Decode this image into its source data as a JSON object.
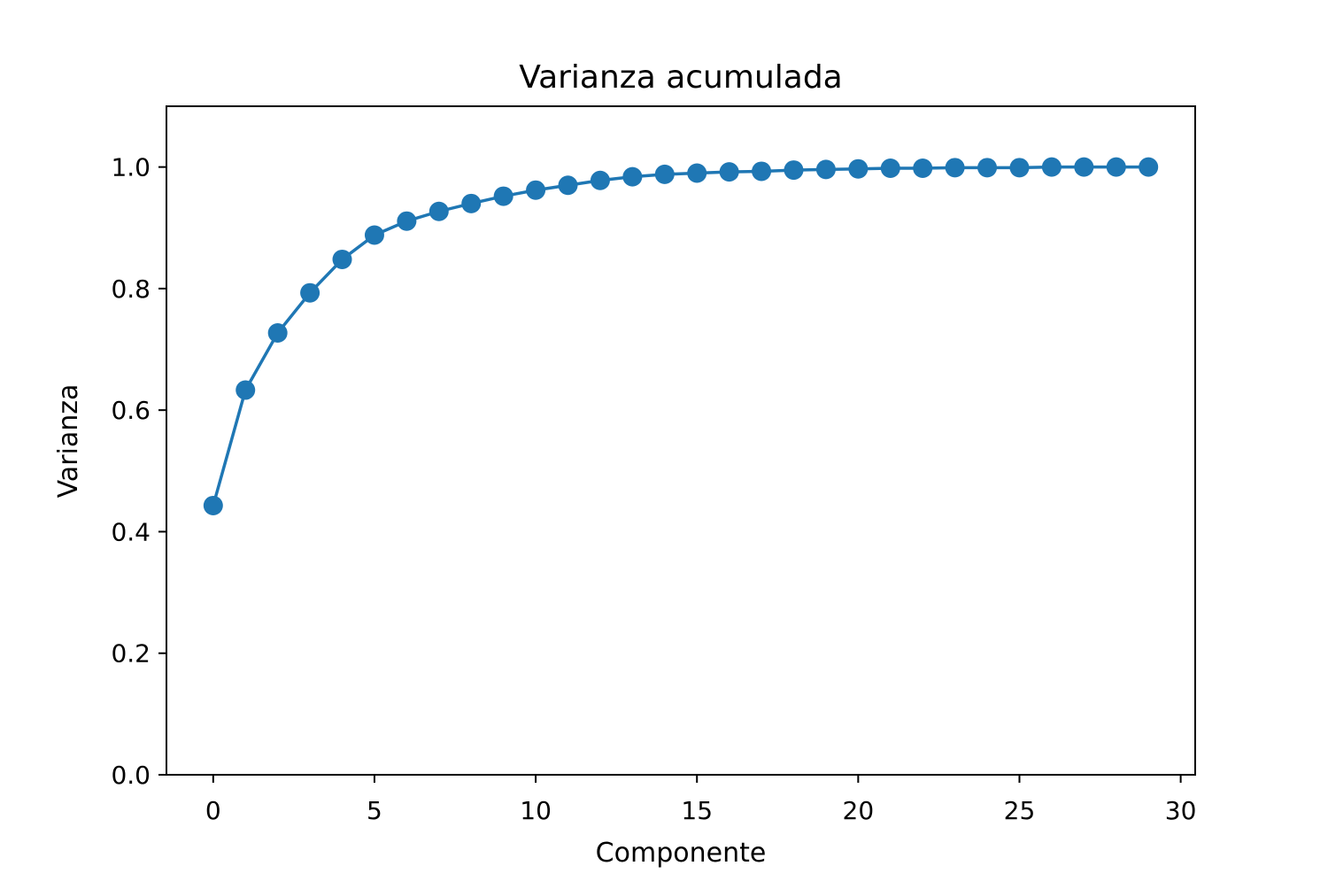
{
  "chart_data": {
    "type": "line",
    "title": "Varianza acumulada",
    "xlabel": "Componente",
    "ylabel": "Varianza",
    "xlim": [
      -1.45,
      30.45
    ],
    "ylim": [
      0.0,
      1.1
    ],
    "x_ticks": [
      0,
      5,
      10,
      15,
      20,
      25,
      30
    ],
    "x_tick_labels": [
      "0",
      "5",
      "10",
      "15",
      "20",
      "25",
      "30"
    ],
    "y_ticks": [
      0.0,
      0.2,
      0.4,
      0.6,
      0.8,
      1.0
    ],
    "y_tick_labels": [
      "0.0",
      "0.2",
      "0.4",
      "0.6",
      "0.8",
      "1.0"
    ],
    "grid": false,
    "legend": "none",
    "marker": "circle",
    "color": "#1f77b4",
    "series": [
      {
        "x": [
          0,
          1,
          2,
          3,
          4,
          5,
          6,
          7,
          8,
          9,
          10,
          11,
          12,
          13,
          14,
          15,
          16,
          17,
          18,
          19,
          20,
          21,
          22,
          23,
          24,
          25,
          26,
          27,
          28,
          29
        ],
        "values": [
          0.443,
          0.633,
          0.727,
          0.793,
          0.848,
          0.888,
          0.911,
          0.927,
          0.94,
          0.952,
          0.962,
          0.97,
          0.978,
          0.984,
          0.988,
          0.99,
          0.992,
          0.993,
          0.995,
          0.996,
          0.997,
          0.998,
          0.998,
          0.999,
          0.999,
          0.999,
          1.0,
          1.0,
          1.0,
          1.0
        ]
      }
    ]
  }
}
